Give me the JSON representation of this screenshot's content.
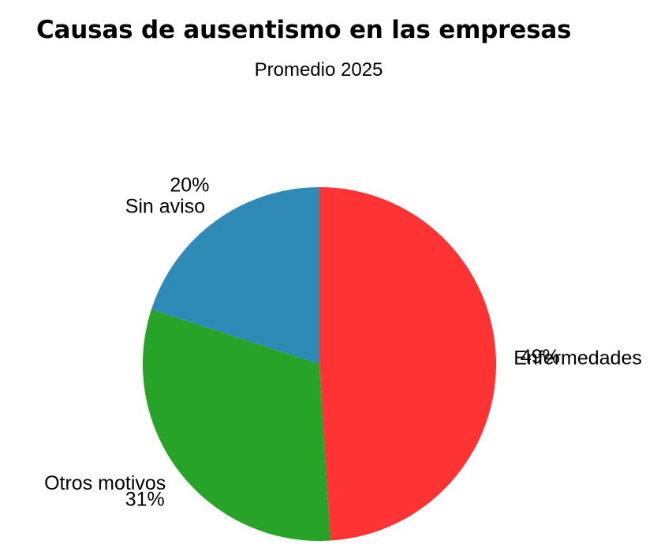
{
  "chart_data": {
    "type": "pie",
    "title": "Causas de ausentismo en las empresas",
    "subtitle": "Promedio 2025",
    "categories": [
      "Enfermedades",
      "Otros motivos",
      "Sin aviso"
    ],
    "values": [
      49,
      31,
      20
    ],
    "value_labels": [
      "49%",
      "31%",
      "20%"
    ],
    "colors": [
      "#ff3333",
      "#27a427",
      "#2e8bb8"
    ],
    "start_angle_deg": 90,
    "direction": "clockwise",
    "legend": "none"
  }
}
